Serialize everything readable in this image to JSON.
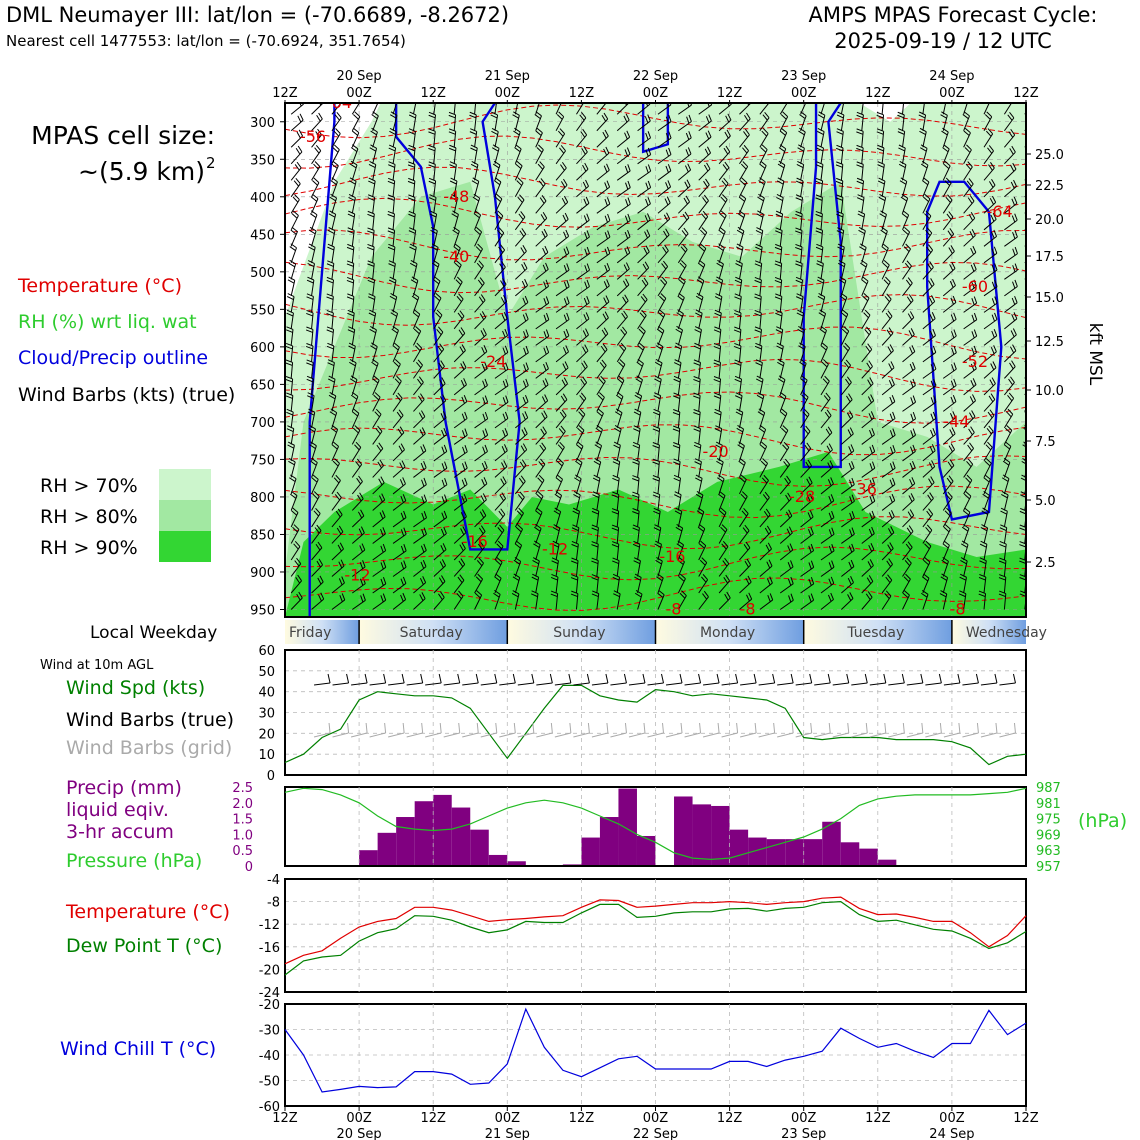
{
  "header": {
    "title_line1": "DML Neumayer III: lat/lon = (-70.6689, -8.2672)",
    "title_line2": "Nearest cell 1477553: lat/lon = (-70.6924, 351.7654)",
    "cycle_line1": "AMPS MPAS Forecast Cycle:",
    "cycle_line2": "2025-09-19 / 12 UTC"
  },
  "legend": {
    "cell_size_line1": "MPAS cell size:",
    "cell_size_line2": "~(5.9 km)",
    "cell_size_sup": "2",
    "temperature": "Temperature (°C)",
    "rh": "RH (%) wrt liq. wat",
    "cloud": "Cloud/Precip outline",
    "wind": "Wind Barbs (kts) (true)",
    "rh70": "RH > 70%",
    "rh80": "RH > 80%",
    "rh90": "RH > 90%",
    "local_weekday": "Local Weekday",
    "wind10m": "Wind at 10m AGL",
    "wind_spd": "Wind Spd (kts)",
    "wind_barbs_true": "Wind Barbs (true)",
    "wind_barbs_grid": "Wind Barbs (grid)",
    "precip1": "Precip (mm)",
    "precip2": "liquid eqiv.",
    "precip3": "3-hr accum",
    "pressure": "Pressure (hPa)",
    "hpa_unit": "(hPa)",
    "temp2": "Temperature (°C)",
    "dewpoint": "Dew Point T (°C)",
    "windchill": "Wind Chill T (°C)",
    "kft_label": "kft MSL"
  },
  "colors": {
    "red": "#e00000",
    "green_text": "#2ecc2e",
    "dark_green": "#008000",
    "blue": "#0000dd",
    "purple": "#800080",
    "rh70": "#ccf5cc",
    "rh80": "#a2e8a2",
    "rh90": "#33d633",
    "grey": "#aaaaaa"
  },
  "chart_data": [
    {
      "type": "heatmap",
      "name": "time-height cross section",
      "time_ticks_top": [
        "12Z",
        "00Z",
        "12Z",
        "00Z",
        "12Z",
        "00Z",
        "12Z",
        "00Z",
        "12Z",
        "00Z",
        "12Z"
      ],
      "date_ticks_top": [
        "20 Sep",
        "21 Sep",
        "22 Sep",
        "23 Sep",
        "24 Sep"
      ],
      "pressure_ticks": [
        "300",
        "350",
        "400",
        "450",
        "500",
        "550",
        "600",
        "650",
        "700",
        "750",
        "800",
        "850",
        "900",
        "950"
      ],
      "kft_ticks": [
        "25.0",
        "22.5",
        "20.0",
        "17.5",
        "15.0",
        "12.5",
        "10.0",
        "7.5",
        "5.0",
        "2.5"
      ],
      "temperature_labels": [
        "-64",
        "-56",
        "-48",
        "-40",
        "-24",
        "-16",
        "-12",
        "-12",
        "-8",
        "-8",
        "-8",
        "-16",
        "-20",
        "-28",
        "-36",
        "-44",
        "-52",
        "-60",
        "-64"
      ],
      "weekdays": [
        "Friday",
        "Saturday",
        "Sunday",
        "Monday",
        "Tuesday",
        "Wednesday"
      ]
    },
    {
      "type": "line",
      "name": "wind speed 10m",
      "y_ticks": [
        "0",
        "10",
        "20",
        "30",
        "40",
        "50",
        "60"
      ],
      "ylim": [
        0,
        60
      ],
      "x_hours": [
        0,
        3,
        6,
        9,
        12,
        15,
        18,
        21,
        24,
        27,
        30,
        33,
        36,
        39,
        42,
        45,
        48,
        51,
        54,
        57,
        60,
        63,
        66,
        69,
        72,
        75,
        78,
        81,
        84,
        87,
        90,
        93,
        96,
        99,
        102,
        105,
        108,
        111,
        114,
        117,
        120
      ],
      "values": [
        6,
        10,
        18,
        22,
        36,
        40,
        39,
        38,
        38,
        37,
        32,
        20,
        8,
        20,
        32,
        43,
        43,
        38,
        36,
        35,
        41,
        40,
        38,
        39,
        38,
        37,
        36,
        32,
        18,
        17,
        18,
        18,
        18,
        17,
        17,
        17,
        16,
        13,
        5,
        9,
        10
      ]
    },
    {
      "type": "bar",
      "name": "precip 3-hr",
      "y_ticks": [
        "0",
        "0.5",
        "1.0",
        "1.5",
        "2.0",
        "2.5"
      ],
      "ylim": [
        0,
        2.5
      ],
      "x_hours": [
        0,
        3,
        6,
        9,
        12,
        15,
        18,
        21,
        24,
        27,
        30,
        33,
        36,
        39,
        42,
        45,
        48,
        51,
        54,
        57,
        60,
        63,
        66,
        69,
        72,
        75,
        78,
        81,
        84,
        87,
        90,
        93,
        96,
        99,
        102,
        105,
        108,
        111,
        114,
        117
      ],
      "values": [
        0,
        0,
        0.03,
        0.03,
        0.5,
        1.05,
        1.55,
        2.05,
        2.25,
        1.85,
        1.15,
        0.35,
        0.15,
        0,
        0,
        0.05,
        0.9,
        1.55,
        2.45,
        0.95,
        0,
        2.2,
        1.95,
        1.9,
        1.15,
        0.9,
        0.85,
        0.85,
        0.85,
        1.4,
        0.75,
        0.55,
        0.2,
        0,
        0,
        0,
        0,
        0,
        0,
        0
      ],
      "pressure_ticks": [
        "957",
        "963",
        "969",
        "975",
        "981",
        "987"
      ],
      "pressure_lim": [
        957,
        987
      ],
      "pressure_hours": [
        0,
        3,
        6,
        9,
        12,
        15,
        18,
        21,
        24,
        27,
        30,
        33,
        36,
        39,
        42,
        45,
        48,
        51,
        54,
        57,
        60,
        63,
        66,
        69,
        72,
        75,
        78,
        81,
        84,
        87,
        90,
        93,
        96,
        99,
        102,
        105,
        108,
        111,
        114,
        117,
        120
      ],
      "pressure_values": [
        985,
        986.5,
        986,
        984,
        981,
        976,
        972,
        971,
        970.5,
        971,
        973,
        976,
        979,
        981,
        982,
        981,
        979,
        976,
        973,
        969,
        966,
        962,
        960,
        959.5,
        960,
        962,
        964,
        966,
        968,
        971,
        975,
        980,
        982.5,
        983.5,
        984,
        984,
        984,
        984,
        984.5,
        985,
        986.5
      ]
    },
    {
      "type": "line",
      "name": "temperature and dew point",
      "y_ticks": [
        "-24",
        "-20",
        "-16",
        "-12",
        "-8",
        "-4"
      ],
      "ylim": [
        -24,
        -4
      ],
      "x_hours": [
        0,
        3,
        6,
        9,
        12,
        15,
        18,
        21,
        24,
        27,
        30,
        33,
        36,
        39,
        42,
        45,
        48,
        51,
        54,
        57,
        60,
        63,
        66,
        69,
        72,
        75,
        78,
        81,
        84,
        87,
        90,
        93,
        96,
        99,
        102,
        105,
        108,
        111,
        114,
        117,
        120
      ],
      "series": [
        {
          "name": "Temperature",
          "values": [
            -19,
            -17.5,
            -16.7,
            -14.5,
            -12.5,
            -11.5,
            -11,
            -9,
            -9,
            -9.5,
            -10.5,
            -11.5,
            -11.2,
            -11,
            -10.7,
            -10.5,
            -9,
            -7.7,
            -7.8,
            -9,
            -8.8,
            -8.5,
            -8.2,
            -8.2,
            -8,
            -8.2,
            -8.5,
            -8.2,
            -8,
            -7.4,
            -7.2,
            -9.2,
            -10.3,
            -10.2,
            -10.8,
            -11.5,
            -11.5,
            -13.5,
            -16,
            -14,
            -10.5
          ]
        },
        {
          "name": "Dew Point",
          "values": [
            -21,
            -18.5,
            -17.8,
            -17.5,
            -15,
            -13.5,
            -12.8,
            -10.5,
            -10.6,
            -11.3,
            -12.5,
            -13.5,
            -13,
            -11.5,
            -11.7,
            -11.7,
            -10,
            -8.5,
            -8.5,
            -10.8,
            -10.6,
            -10,
            -9.8,
            -9.8,
            -9.3,
            -9.2,
            -9.7,
            -9.2,
            -9,
            -8.2,
            -8,
            -10.3,
            -11.5,
            -11.3,
            -12.1,
            -12.9,
            -13.2,
            -14.5,
            -16.3,
            -15.3,
            -13.3
          ]
        }
      ]
    },
    {
      "type": "line",
      "name": "wind chill",
      "y_ticks": [
        "-60",
        "-50",
        "-40",
        "-30",
        "-20"
      ],
      "ylim": [
        -60,
        -20
      ],
      "x_hours": [
        0,
        3,
        6,
        9,
        12,
        15,
        18,
        21,
        24,
        27,
        30,
        33,
        36,
        39,
        42,
        45,
        48,
        51,
        54,
        57,
        60,
        63,
        66,
        69,
        72,
        75,
        78,
        81,
        84,
        87,
        90,
        93,
        96,
        99,
        102,
        105,
        108,
        111,
        114,
        117,
        120
      ],
      "values": [
        -30,
        -40,
        -54.5,
        -53.5,
        -52.3,
        -52.8,
        -52.5,
        -46.5,
        -46.5,
        -47.5,
        -51.5,
        -51,
        -43.5,
        -22,
        -37,
        -46,
        -48.5,
        -45,
        -41.5,
        -40.5,
        -45.5,
        -45.5,
        -45.5,
        -45.5,
        -42.5,
        -42.5,
        -44.5,
        -42,
        -40.5,
        -38.5,
        -29.5,
        -33.5,
        -37,
        -35.5,
        -38.5,
        -41,
        -35.5,
        -35.5,
        -22.5,
        -32,
        -27.5
      ]
    }
  ],
  "bottom_axis": {
    "time_ticks": [
      "12Z",
      "00Z",
      "12Z",
      "00Z",
      "12Z",
      "00Z",
      "12Z",
      "00Z",
      "12Z",
      "00Z",
      "12Z"
    ],
    "date_ticks": [
      "20 Sep",
      "21 Sep",
      "22 Sep",
      "23 Sep",
      "24 Sep"
    ]
  }
}
